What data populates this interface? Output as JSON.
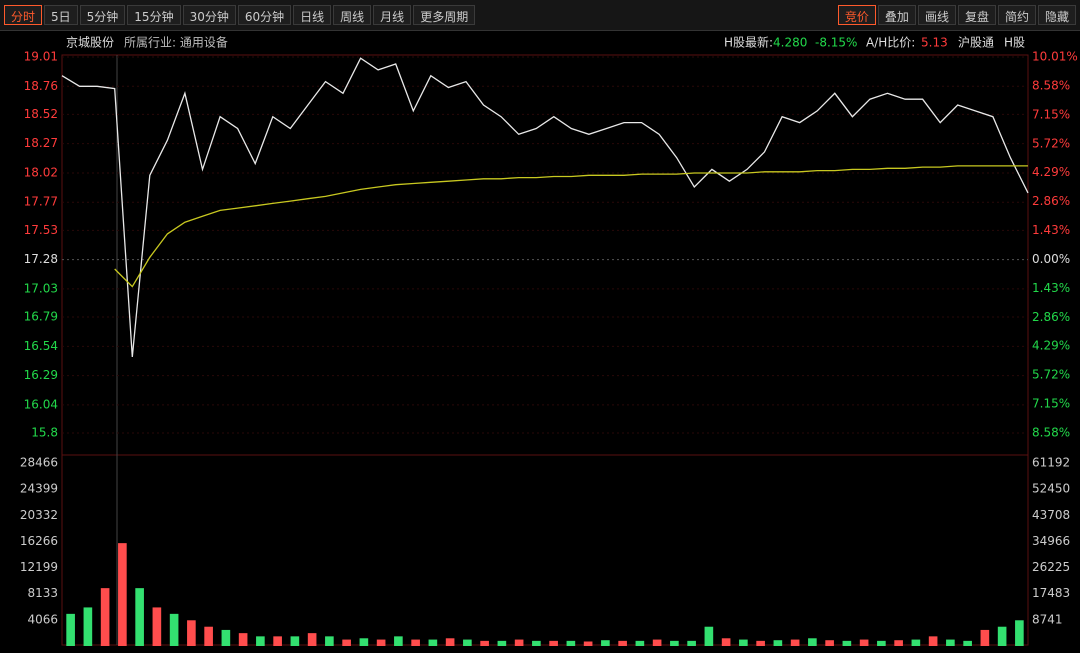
{
  "toolbar": {
    "left": [
      "分时",
      "5日",
      "5分钟",
      "15分钟",
      "30分钟",
      "60分钟",
      "日线",
      "周线",
      "月线",
      "更多周期"
    ],
    "right": [
      "竞价",
      "叠加",
      "画线",
      "复盘",
      "简约",
      "隐藏"
    ]
  },
  "header": {
    "name": "京城股份",
    "industry": "所属行业: 通用设备",
    "h_label": "H股最新:",
    "h_price": "4.280",
    "h_change": "-8.15%",
    "ah_label": "A/H比价:",
    "ah_ratio": "5.13",
    "tags": [
      "沪股通",
      "H股"
    ]
  },
  "chart_data": [
    {
      "type": "line",
      "ref_price": 17.28,
      "ylim": [
        15.8,
        19.01
      ],
      "yticks": [
        19.01,
        18.76,
        18.52,
        18.27,
        18.02,
        17.77,
        17.53,
        17.28,
        17.03,
        16.79,
        16.54,
        16.29,
        16.04,
        15.8
      ],
      "y2lim": [
        -8.58,
        10.01
      ],
      "y2ticks": [
        {
          "value": 10.01,
          "label": "10.01%"
        },
        {
          "value": 8.58,
          "label": "8.58%"
        },
        {
          "value": 7.15,
          "label": "7.15%"
        },
        {
          "value": 5.72,
          "label": "5.72%"
        },
        {
          "value": 4.29,
          "label": "4.29%"
        },
        {
          "value": 2.86,
          "label": "2.86%"
        },
        {
          "value": 1.43,
          "label": "1.43%"
        },
        {
          "value": 0,
          "label": "0.00%"
        },
        {
          "value": -1.43,
          "label": "1.43%"
        },
        {
          "value": -2.86,
          "label": "2.86%"
        },
        {
          "value": -4.29,
          "label": "4.29%"
        },
        {
          "value": -5.72,
          "label": "5.72%"
        },
        {
          "value": -7.15,
          "label": "7.15%"
        },
        {
          "value": -8.58,
          "label": "8.58%"
        }
      ],
      "up_color": "#ff3b3b",
      "down_color": "#22d84a",
      "flat_color": "#dddddd",
      "series": [
        {
          "color": "#e8e8e8",
          "values": [
            18.85,
            18.76,
            18.76,
            18.74,
            16.45,
            18.0,
            18.3,
            18.7,
            18.05,
            18.5,
            18.4,
            18.1,
            18.5,
            18.4,
            18.6,
            18.8,
            18.7,
            19.0,
            18.9,
            18.95,
            18.55,
            18.85,
            18.75,
            18.8,
            18.6,
            18.5,
            18.35,
            18.4,
            18.5,
            18.4,
            18.35,
            18.4,
            18.45,
            18.45,
            18.35,
            18.15,
            17.9,
            18.05,
            17.95,
            18.05,
            18.2,
            18.5,
            18.45,
            18.55,
            18.7,
            18.5,
            18.65,
            18.7,
            18.65,
            18.65,
            18.45,
            18.6,
            18.55,
            18.5,
            18.15,
            17.85
          ]
        },
        {
          "color": "#c8c820",
          "values": [
            null,
            null,
            null,
            17.2,
            17.05,
            17.3,
            17.5,
            17.6,
            17.65,
            17.7,
            17.72,
            17.74,
            17.76,
            17.78,
            17.8,
            17.82,
            17.85,
            17.88,
            17.9,
            17.92,
            17.93,
            17.94,
            17.95,
            17.96,
            17.97,
            17.97,
            17.98,
            17.98,
            17.99,
            17.99,
            18.0,
            18.0,
            18.0,
            18.01,
            18.01,
            18.01,
            18.02,
            18.02,
            18.02,
            18.02,
            18.03,
            18.03,
            18.03,
            18.04,
            18.04,
            18.05,
            18.05,
            18.06,
            18.06,
            18.07,
            18.07,
            18.08,
            18.08,
            18.08,
            18.08,
            18.08
          ]
        }
      ]
    },
    {
      "type": "bar",
      "ylim": [
        0,
        28466
      ],
      "yticks": [
        28466,
        24399,
        20332,
        16266,
        12199,
        8133,
        4066
      ],
      "y2lim": [
        0,
        61192
      ],
      "y2ticks": [
        61192,
        52450,
        43708,
        34966,
        26225,
        17483,
        8741
      ],
      "values": [
        5000,
        6000,
        9000,
        16000,
        9000,
        6000,
        5000,
        4000,
        3000,
        2500,
        2000,
        1500,
        1500,
        1500,
        2000,
        1500,
        1000,
        1200,
        1000,
        1500,
        1000,
        1000,
        1200,
        1000,
        800,
        800,
        1000,
        800,
        800,
        800,
        700,
        900,
        800,
        800,
        1000,
        800,
        800,
        3000,
        1200,
        1000,
        800,
        900,
        1000,
        1200,
        900,
        800,
        1000,
        800,
        900,
        1000,
        1500,
        1000,
        800,
        2500,
        3000,
        4000
      ],
      "colors": [
        "#33e070",
        "#33e070",
        "#ff4d4d",
        "#ff4d4d",
        "#33e070",
        "#ff4d4d",
        "#33e070",
        "#ff4d4d",
        "#ff4d4d",
        "#33e070",
        "#ff4d4d",
        "#33e070",
        "#ff4d4d",
        "#33e070",
        "#ff4d4d",
        "#33e070",
        "#ff4d4d",
        "#33e070",
        "#ff4d4d",
        "#33e070",
        "#ff4d4d",
        "#33e070",
        "#ff4d4d",
        "#33e070",
        "#ff4d4d",
        "#33e070",
        "#ff4d4d",
        "#33e070",
        "#ff4d4d",
        "#33e070",
        "#ff4d4d",
        "#33e070",
        "#ff4d4d",
        "#33e070",
        "#ff4d4d",
        "#33e070",
        "#33e070",
        "#33e070",
        "#ff4d4d",
        "#33e070",
        "#ff4d4d",
        "#33e070",
        "#ff4d4d",
        "#33e070",
        "#ff4d4d",
        "#33e070",
        "#ff4d4d",
        "#33e070",
        "#ff4d4d",
        "#33e070",
        "#ff4d4d",
        "#33e070",
        "#33e070",
        "#ff4d4d",
        "#33e070",
        "#33e070"
      ]
    }
  ]
}
